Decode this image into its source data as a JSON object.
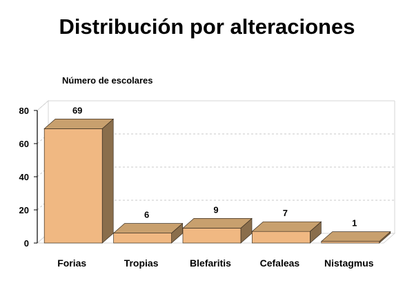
{
  "chart_data": {
    "type": "bar",
    "title": "Distribución por alteraciones",
    "ylabel": "Número de escolares",
    "xlabel": "",
    "categories": [
      "Forias",
      "Tropias",
      "Blefaritis",
      "Cefaleas",
      "Nistagmus"
    ],
    "values": [
      69,
      6,
      9,
      7,
      1
    ],
    "ylim": [
      0,
      80
    ],
    "yticks": [
      "0",
      "20",
      "40",
      "60",
      "80"
    ],
    "grid": true,
    "style": "3d",
    "colors": {
      "bar_front": "#f0b882",
      "bar_top": "#c8a06e",
      "bar_side": "#8a6e4c",
      "grid": "#c8c8c8"
    }
  }
}
